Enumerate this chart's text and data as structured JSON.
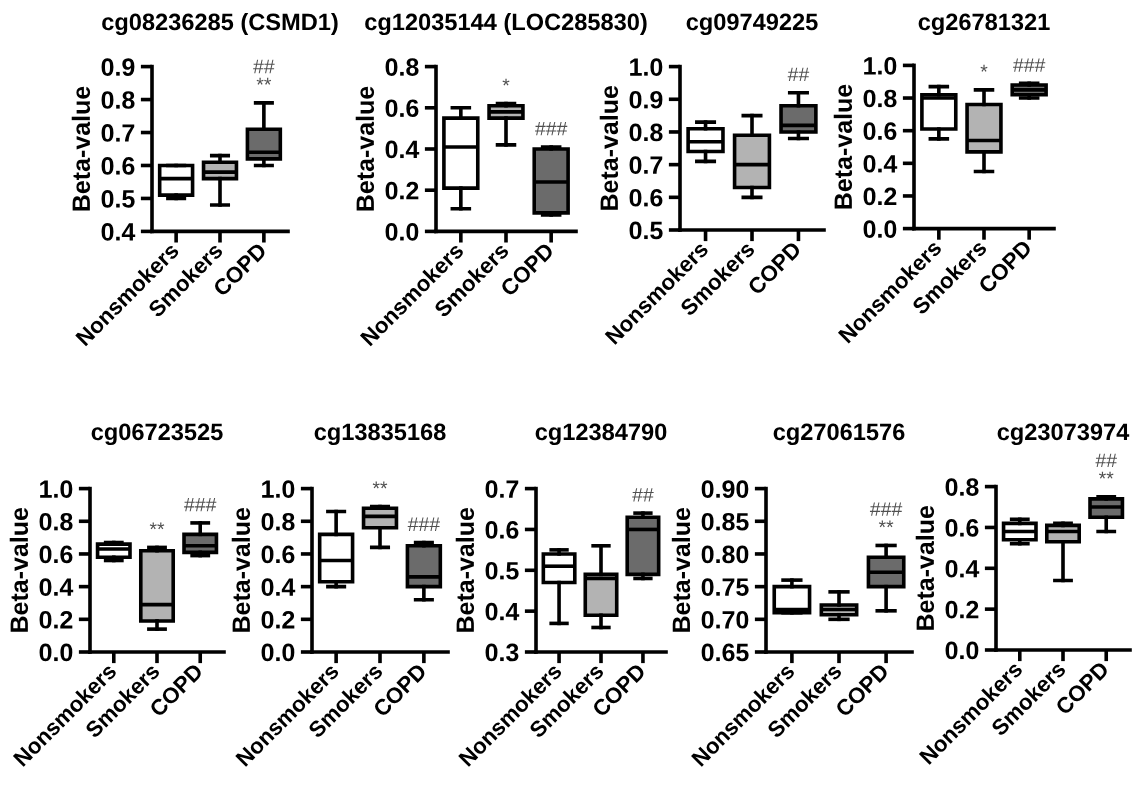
{
  "chart_data": [
    {
      "type": "box",
      "title": "cg08236285 (CSMD1)",
      "ylabel": "Beta-value",
      "categories": [
        "Nonsmokers",
        "Smokers",
        "COPD"
      ],
      "colors": [
        "#ffffff",
        "#b3b3b3",
        "#6b6b6b"
      ],
      "boxes": [
        {
          "low": 0.5,
          "q1": 0.51,
          "median": 0.56,
          "q3": 0.6,
          "high": 0.6
        },
        {
          "low": 0.48,
          "q1": 0.56,
          "median": 0.58,
          "q3": 0.61,
          "high": 0.63
        },
        {
          "low": 0.6,
          "q1": 0.62,
          "median": 0.64,
          "q3": 0.71,
          "high": 0.79
        }
      ],
      "ylim": [
        0.4,
        0.9
      ],
      "yticks": [
        0.4,
        0.5,
        0.6,
        0.7,
        0.8,
        0.9
      ],
      "annotations": [
        {
          "text": "**",
          "x": "COPD",
          "y": 0.79
        },
        {
          "text": "##",
          "x": "COPD",
          "y": 0.79
        }
      ]
    },
    {
      "type": "box",
      "title": "cg12035144 (LOC285830)",
      "ylabel": "Beta-value",
      "categories": [
        "Nonsmokers",
        "Smokers",
        "COPD"
      ],
      "colors": [
        "#ffffff",
        "#b3b3b3",
        "#6b6b6b"
      ],
      "boxes": [
        {
          "low": 0.11,
          "q1": 0.21,
          "median": 0.41,
          "q3": 0.55,
          "high": 0.6
        },
        {
          "low": 0.42,
          "q1": 0.55,
          "median": 0.58,
          "q3": 0.61,
          "high": 0.62
        },
        {
          "low": 0.08,
          "q1": 0.09,
          "median": 0.24,
          "q3": 0.4,
          "high": 0.41
        }
      ],
      "ylim": [
        0,
        0.8
      ],
      "yticks": [
        {
          "value": 0,
          "label": "0.0"
        },
        0.2,
        0.4,
        0.6,
        0.8
      ],
      "annotations": [
        {
          "text": "*",
          "x": "Smokers",
          "y": 0.62
        },
        {
          "text": "###",
          "x": "COPD",
          "y": 0.41
        }
      ]
    },
    {
      "type": "box",
      "title": "cg09749225",
      "ylabel": "Beta-value",
      "categories": [
        "Nonsmokers",
        "Smokers",
        "COPD"
      ],
      "colors": [
        "#ffffff",
        "#b3b3b3",
        "#6b6b6b"
      ],
      "boxes": [
        {
          "low": 0.71,
          "q1": 0.74,
          "median": 0.77,
          "q3": 0.81,
          "high": 0.83
        },
        {
          "low": 0.6,
          "q1": 0.63,
          "median": 0.7,
          "q3": 0.79,
          "high": 0.85
        },
        {
          "low": 0.78,
          "q1": 0.8,
          "median": 0.82,
          "q3": 0.88,
          "high": 0.92
        }
      ],
      "ylim": [
        0.5,
        1
      ],
      "yticks": [
        0.5,
        0.6,
        0.7,
        0.8,
        0.9,
        {
          "value": 1,
          "label": "1.0"
        }
      ],
      "annotations": [
        {
          "text": "##",
          "x": "COPD",
          "y": 0.92
        }
      ]
    },
    {
      "type": "box",
      "title": "cg26781321",
      "ylabel": "Beta-value",
      "categories": [
        "Nonsmokers",
        "Smokers",
        "COPD"
      ],
      "colors": [
        "#ffffff",
        "#b3b3b3",
        "#6b6b6b"
      ],
      "boxes": [
        {
          "low": 0.55,
          "q1": 0.61,
          "median": 0.8,
          "q3": 0.82,
          "high": 0.87
        },
        {
          "low": 0.35,
          "q1": 0.47,
          "median": 0.54,
          "q3": 0.76,
          "high": 0.85
        },
        {
          "low": 0.8,
          "q1": 0.82,
          "median": 0.85,
          "q3": 0.88,
          "high": 0.89
        }
      ],
      "ylim": [
        0,
        1
      ],
      "yticks": [
        {
          "value": 0,
          "label": "0.0"
        },
        0.2,
        0.4,
        0.6,
        0.8,
        {
          "value": 1,
          "label": "1.0"
        }
      ],
      "annotations": [
        {
          "text": "*",
          "x": "Smokers",
          "y": 0.85
        },
        {
          "text": "###",
          "x": "COPD",
          "y": 0.89
        }
      ]
    },
    {
      "type": "box",
      "title": "cg06723525",
      "ylabel": "Beta-value",
      "categories": [
        "Nonsmokers",
        "Smokers",
        "COPD"
      ],
      "colors": [
        "#ffffff",
        "#b3b3b3",
        "#6b6b6b"
      ],
      "boxes": [
        {
          "low": 0.56,
          "q1": 0.58,
          "median": 0.63,
          "q3": 0.66,
          "high": 0.67
        },
        {
          "low": 0.14,
          "q1": 0.19,
          "median": 0.29,
          "q3": 0.62,
          "high": 0.64
        },
        {
          "low": 0.59,
          "q1": 0.61,
          "median": 0.65,
          "q3": 0.72,
          "high": 0.79
        }
      ],
      "ylim": [
        0,
        1
      ],
      "yticks": [
        {
          "value": 0,
          "label": "0.0"
        },
        0.2,
        0.4,
        0.6,
        0.8,
        {
          "value": 1,
          "label": "1.0"
        }
      ],
      "annotations": [
        {
          "text": "**",
          "x": "Smokers",
          "y": 0.64
        },
        {
          "text": "###",
          "x": "COPD",
          "y": 0.79
        }
      ]
    },
    {
      "type": "box",
      "title": "cg13835168",
      "ylabel": "Beta-value",
      "categories": [
        "Nonsmokers",
        "Smokers",
        "COPD"
      ],
      "colors": [
        "#ffffff",
        "#b3b3b3",
        "#6b6b6b"
      ],
      "boxes": [
        {
          "low": 0.4,
          "q1": 0.43,
          "median": 0.56,
          "q3": 0.72,
          "high": 0.86
        },
        {
          "low": 0.64,
          "q1": 0.76,
          "median": 0.83,
          "q3": 0.88,
          "high": 0.89
        },
        {
          "low": 0.32,
          "q1": 0.4,
          "median": 0.46,
          "q3": 0.65,
          "high": 0.67
        }
      ],
      "ylim": [
        0,
        1
      ],
      "yticks": [
        {
          "value": 0,
          "label": "0.0"
        },
        0.2,
        0.4,
        0.6,
        0.8,
        {
          "value": 1,
          "label": "1.0"
        }
      ],
      "annotations": [
        {
          "text": "**",
          "x": "Smokers",
          "y": 0.89
        },
        {
          "text": "###",
          "x": "COPD",
          "y": 0.67
        }
      ]
    },
    {
      "type": "box",
      "title": "cg12384790",
      "ylabel": "Beta-value",
      "categories": [
        "Nonsmokers",
        "Smokers",
        "COPD"
      ],
      "colors": [
        "#ffffff",
        "#b3b3b3",
        "#6b6b6b"
      ],
      "boxes": [
        {
          "low": 0.37,
          "q1": 0.47,
          "median": 0.51,
          "q3": 0.54,
          "high": 0.55
        },
        {
          "low": 0.36,
          "q1": 0.39,
          "median": 0.48,
          "q3": 0.49,
          "high": 0.56
        },
        {
          "low": 0.48,
          "q1": 0.49,
          "median": 0.6,
          "q3": 0.63,
          "high": 0.64
        }
      ],
      "ylim": [
        0.3,
        0.7
      ],
      "yticks": [
        0.3,
        0.4,
        0.5,
        0.6,
        0.7
      ],
      "annotations": [
        {
          "text": "##",
          "x": "COPD",
          "y": 0.64
        }
      ]
    },
    {
      "type": "box",
      "title": "cg27061576",
      "ylabel": "Beta-value",
      "categories": [
        "Nonsmokers",
        "Smokers",
        "COPD"
      ],
      "colors": [
        "#ffffff",
        "#b3b3b3",
        "#6b6b6b"
      ],
      "boxes": [
        {
          "low": 0.71,
          "q1": 0.71,
          "median": 0.715,
          "q3": 0.75,
          "high": 0.76
        },
        {
          "low": 0.7,
          "q1": 0.707,
          "median": 0.715,
          "q3": 0.722,
          "high": 0.742
        },
        {
          "low": 0.713,
          "q1": 0.75,
          "median": 0.772,
          "q3": 0.795,
          "high": 0.813
        }
      ],
      "ylim": [
        0.65,
        0.9
      ],
      "yticks": [
        0.65,
        {
          "value": 0.7,
          "label": "0.70"
        },
        0.75,
        {
          "value": 0.8,
          "label": "0.80"
        },
        0.85,
        {
          "value": 0.9,
          "label": "0.90"
        }
      ],
      "annotations": [
        {
          "text": "**",
          "x": "COPD",
          "y": 0.813
        },
        {
          "text": "###",
          "x": "COPD",
          "y": 0.813
        }
      ]
    },
    {
      "type": "box",
      "title": "cg23073974",
      "ylabel": "Beta-value",
      "categories": [
        "Nonsmokers",
        "Smokers",
        "COPD"
      ],
      "colors": [
        "#ffffff",
        "#b3b3b3",
        "#6b6b6b"
      ],
      "boxes": [
        {
          "low": 0.52,
          "q1": 0.54,
          "median": 0.58,
          "q3": 0.62,
          "high": 0.64
        },
        {
          "low": 0.34,
          "q1": 0.53,
          "median": 0.58,
          "q3": 0.61,
          "high": 0.62
        },
        {
          "low": 0.58,
          "q1": 0.65,
          "median": 0.7,
          "q3": 0.74,
          "high": 0.75
        }
      ],
      "ylim": [
        0,
        0.8
      ],
      "yticks": [
        {
          "value": 0,
          "label": "0.0"
        },
        0.2,
        0.4,
        0.6,
        0.8
      ],
      "annotations": [
        {
          "text": "**",
          "x": "COPD",
          "y": 0.75
        },
        {
          "text": "##",
          "x": "COPD",
          "y": 0.75
        }
      ]
    }
  ]
}
